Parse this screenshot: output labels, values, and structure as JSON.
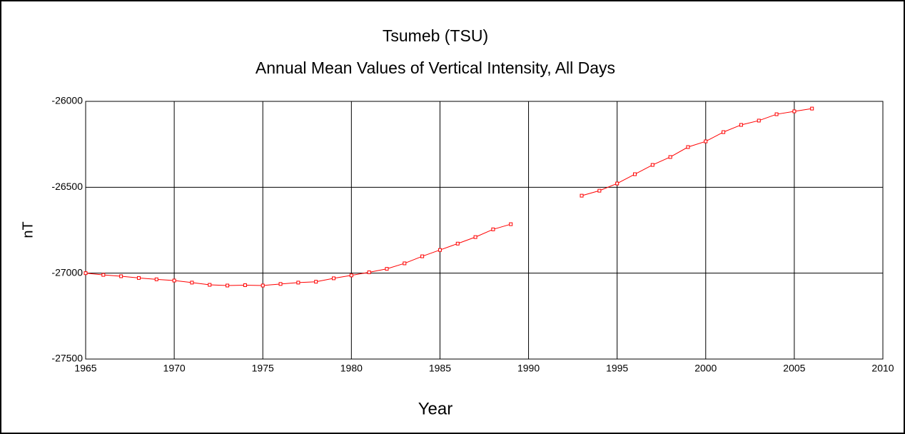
{
  "chart_data": {
    "type": "line",
    "title": "Tsumeb (TSU)",
    "subtitle": "Annual Mean Values of Vertical Intensity, All Days",
    "x_label": "Year",
    "y_label": "nT",
    "x": [
      1965,
      1966,
      1967,
      1968,
      1969,
      1970,
      1971,
      1972,
      1973,
      1974,
      1975,
      1976,
      1977,
      1978,
      1979,
      1980,
      1981,
      1982,
      1983,
      1984,
      1985,
      1986,
      1987,
      1988,
      1989,
      1990,
      1991,
      1992,
      1993,
      1994,
      1995,
      1996,
      1997,
      1998,
      1999,
      2000,
      2001,
      2002,
      2003,
      2004,
      2005,
      2006
    ],
    "series": [
      {
        "color": "#ff0000",
        "values": [
          -27000,
          -27010,
          -27018,
          -27028,
          -27036,
          -27043,
          -27055,
          -27068,
          -27072,
          -27070,
          -27072,
          -27063,
          -27055,
          -27050,
          -27030,
          -27013,
          -26995,
          -26975,
          -26943,
          -26902,
          -26865,
          -26828,
          -26790,
          -26745,
          -26715,
          null,
          null,
          null,
          -26549,
          -26520,
          -26478,
          -26424,
          -26370,
          -26324,
          -26266,
          -26233,
          -26179,
          -26137,
          -26112,
          -26075,
          -26058,
          -26042
        ]
      }
    ],
    "xlim": [
      1965,
      2010
    ],
    "xticks": [
      1965,
      1970,
      1975,
      1980,
      1985,
      1990,
      1995,
      2000,
      2005,
      2010
    ],
    "ylim": [
      -27500,
      -26000
    ],
    "yticks": [
      -26000,
      -26500,
      -27000,
      -27500
    ],
    "grid": true
  }
}
